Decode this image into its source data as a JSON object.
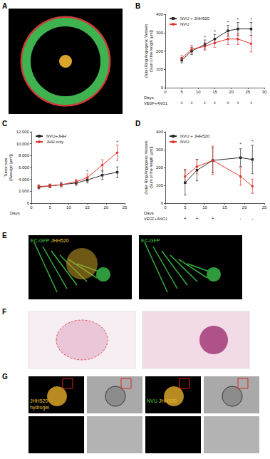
{
  "panel_labels": [
    "A",
    "B",
    "C",
    "D",
    "E",
    "F",
    "G"
  ],
  "images": {
    "E": [
      {
        "lines": [
          [
            {
              "text": "EC-GFP",
              "color": "#49d649"
            },
            {
              "text": "JHH520",
              "color": "#e8c23a"
            }
          ]
        ]
      },
      {
        "lines": [
          [
            {
              "text": "EC-GFP",
              "color": "#49d649"
            }
          ]
        ]
      }
    ],
    "G": [
      {
        "lines": [
          [
            {
              "text": "JHH520",
              "color": "#e8c23a"
            }
          ],
          [
            {
              "text": "hydrogel",
              "color": "#e8c23a"
            }
          ]
        ]
      },
      {
        "lines": []
      },
      {
        "lines": [
          [
            {
              "text": "NVU",
              "color": "#49d649"
            },
            {
              "text": "JHH520",
              "color": "#e8c23a"
            }
          ]
        ]
      },
      {
        "lines": []
      }
    ]
  },
  "chart_data": [
    {
      "type": "line",
      "x": [
        5,
        8,
        12,
        15,
        19,
        22,
        26
      ],
      "xlim": [
        0,
        30
      ],
      "xticks": [
        0,
        5,
        10,
        15,
        20,
        25,
        30
      ],
      "ylim": [
        0,
        400
      ],
      "yticks": [
        0,
        100,
        200,
        300,
        400
      ],
      "xlabel": "Days",
      "ylabel": "Outer Ring Angiogenic Vessels\n(Sum of the length [µm])",
      "grid": false,
      "legend": "upper left",
      "series": [
        {
          "name": "NVU + JHH520",
          "color": "#2b2b2b",
          "marker": "square",
          "values": [
            150,
            200,
            235,
            265,
            310,
            320,
            320
          ],
          "errors": [
            15,
            20,
            25,
            25,
            30,
            35,
            35
          ]
        },
        {
          "name": "NVU",
          "color": "#e0352b",
          "marker": "circle",
          "values": [
            160,
            210,
            225,
            245,
            265,
            265,
            240
          ],
          "errors": [
            15,
            20,
            20,
            25,
            30,
            30,
            45
          ]
        }
      ],
      "annotations": [
        {
          "x": 12,
          "y": 275,
          "text": "*"
        },
        {
          "x": 15,
          "y": 305,
          "text": "*"
        },
        {
          "x": 19,
          "y": 355,
          "text": "*"
        },
        {
          "x": 22,
          "y": 370,
          "text": "*"
        },
        {
          "x": 26,
          "y": 370,
          "text": "*"
        }
      ],
      "treatment": {
        "label": "VEGF+ANG1",
        "marks": [
          "+",
          "+",
          "+",
          "+",
          "+",
          "+",
          "+"
        ]
      }
    },
    {
      "type": "line",
      "x": [
        2,
        5,
        8,
        12,
        15,
        19,
        23
      ],
      "xlim": [
        0,
        25
      ],
      "xticks": [
        0,
        5,
        10,
        15,
        20,
        25
      ],
      "ylim": [
        0,
        12000
      ],
      "yticks": [
        0,
        {
          "value": 2000,
          "label": "2.000"
        },
        {
          "value": 4000,
          "label": "4.000"
        },
        {
          "value": 6000,
          "label": "6.000"
        },
        {
          "value": 8000,
          "label": "8.000"
        },
        {
          "value": 10000,
          "label": "10.000"
        },
        {
          "value": 12000,
          "label": "12.000"
        }
      ],
      "xlabel": "Days",
      "ylabel": "Tumor size\n(Average [µm²])",
      "grid": false,
      "legend": "upper left",
      "series": [
        {
          "name": "NVU+JHH",
          "color": "#2b2b2b",
          "marker": "square",
          "values": [
            2700,
            2900,
            3100,
            3400,
            3900,
            4700,
            5200
          ],
          "errors": [
            300,
            300,
            350,
            400,
            500,
            700,
            900
          ]
        },
        {
          "name": "JHH only",
          "color": "#e0352b",
          "marker": "circle",
          "values": [
            2800,
            2900,
            3100,
            3600,
            4300,
            6400,
            8500
          ],
          "errors": [
            300,
            300,
            350,
            400,
            600,
            900,
            1300
          ]
        }
      ],
      "annotations": [
        {
          "x": 15,
          "y": 5400,
          "text": "*"
        },
        {
          "x": 23,
          "y": 10300,
          "text": "*"
        }
      ]
    },
    {
      "type": "line",
      "x": [
        5,
        8,
        12,
        19,
        22
      ],
      "xlim": [
        0,
        25
      ],
      "xticks": [
        0,
        5,
        10,
        15,
        20,
        25
      ],
      "ylim": [
        0,
        400
      ],
      "yticks": [
        0,
        100,
        200,
        300,
        400
      ],
      "xlabel": "Days",
      "ylabel": "Outer Ring Angiogenic Vessels\n(Sum of the length [µm])",
      "grid": false,
      "legend": "upper left",
      "series": [
        {
          "name": "NVU + JHH520",
          "color": "#2b2b2b",
          "marker": "square",
          "values": [
            115,
            185,
            240,
            255,
            245
          ],
          "errors": [
            70,
            60,
            70,
            50,
            80
          ]
        },
        {
          "name": "NVU",
          "color": "#e0352b",
          "marker": "circle",
          "values": [
            150,
            205,
            240,
            150,
            95
          ],
          "errors": [
            40,
            40,
            80,
            50,
            40
          ]
        }
      ],
      "annotations": [
        {
          "x": 19,
          "y": 330,
          "text": "*"
        },
        {
          "x": 22,
          "y": 345,
          "text": "*"
        }
      ],
      "treatment": {
        "label": "VEGF+ANG1",
        "marks": [
          "+",
          "+",
          "+",
          "-",
          "-"
        ]
      }
    }
  ]
}
